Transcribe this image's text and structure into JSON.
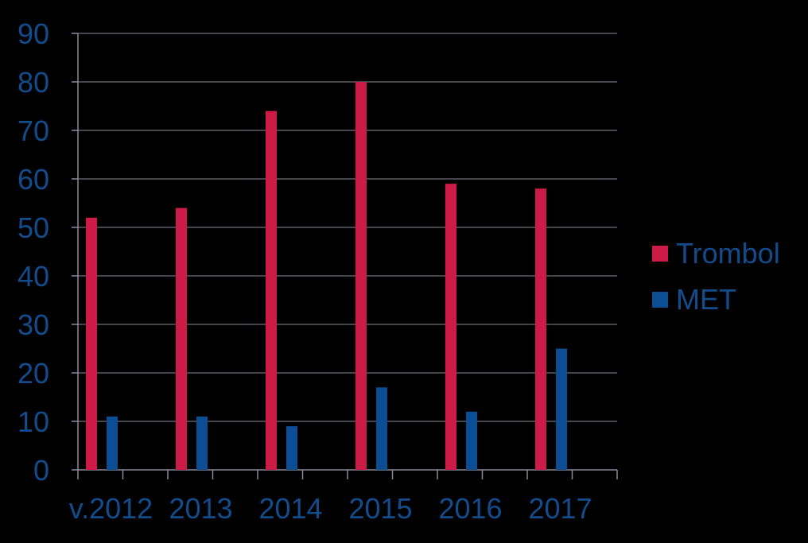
{
  "chart_data": {
    "type": "bar",
    "categories": [
      "v.2012",
      "2013",
      "2014",
      "2015",
      "2016",
      "2017"
    ],
    "series": [
      {
        "name": "Trombol",
        "values": [
          52,
          54,
          74,
          80,
          59,
          58
        ],
        "color": "#CC1B47"
      },
      {
        "name": "MET",
        "values": [
          11,
          11,
          9,
          17,
          12,
          25
        ],
        "color": "#0D4D94"
      }
    ],
    "ylim": [
      0,
      90
    ],
    "yticks": [
      0,
      10,
      20,
      30,
      40,
      50,
      60,
      70,
      80,
      90
    ],
    "grid": true,
    "legend_position": "right",
    "colors": {
      "background": "#000000",
      "text": "#134C8C",
      "grid": "#8A8A9A"
    }
  }
}
